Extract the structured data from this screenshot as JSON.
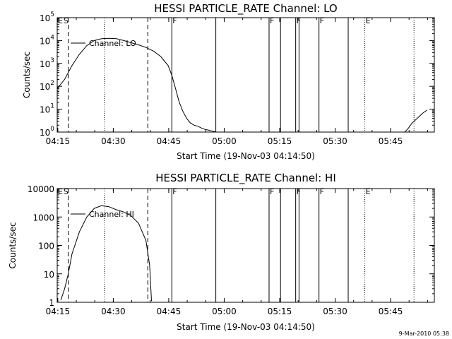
{
  "chart_data": [
    {
      "type": "line",
      "title": "HESSI PARTICLE_RATE Channel: LO",
      "xlabel": "Start Time (19-Nov-03 04:14:50)",
      "ylabel": "Counts/sec",
      "y_scale": "log",
      "ylim": [
        1,
        100000
      ],
      "xlim_minutes": [
        0,
        102
      ],
      "x_tick_labels": [
        "04:15",
        "04:30",
        "04:45",
        "05:00",
        "05:15",
        "05:30",
        "05:45"
      ],
      "y_tick_labels": [
        {
          "base": "10",
          "exp": "0"
        },
        {
          "base": "10",
          "exp": "1"
        },
        {
          "base": "10",
          "exp": "2"
        },
        {
          "base": "10",
          "exp": "3"
        },
        {
          "base": "10",
          "exp": "4"
        },
        {
          "base": "10",
          "exp": "5"
        }
      ],
      "grid": false,
      "legend": {
        "placement": "top-left",
        "entries": [
          "Channel: LO"
        ]
      },
      "series": [
        {
          "name": "Channel: LO",
          "segments": [
            {
              "x": [
                0,
                2,
                4,
                6,
                8,
                10,
                12,
                14,
                16,
                18,
                20,
                22,
                24,
                26,
                28,
                30,
                31,
                32,
                33,
                34,
                35,
                36,
                37,
                38,
                39,
                40,
                41,
                42,
                43
              ],
              "y": [
                80,
                200,
                800,
                2500,
                6000,
                10000,
                12000,
                12500,
                12000,
                10000,
                8000,
                6500,
                5000,
                3500,
                2000,
                800,
                300,
                80,
                20,
                8,
                4,
                2.5,
                2,
                1.8,
                1.5,
                1.3,
                1.2,
                1.1,
                1.0
              ]
            },
            {
              "x": [
                94,
                95,
                96,
                97,
                98,
                99,
                100
              ],
              "y": [
                1.0,
                1.5,
                2.5,
                3.5,
                5,
                7,
                9
              ]
            }
          ]
        }
      ],
      "markers": [
        {
          "label": "E",
          "x": 0,
          "style": "none"
        },
        {
          "label": "S",
          "x": 1.5,
          "style": "none"
        },
        {
          "label": "",
          "x": 3,
          "style": "dashed"
        },
        {
          "label": "",
          "x": 12.8,
          "style": "dotted"
        },
        {
          "label": "",
          "x": 24.5,
          "style": "dashed"
        },
        {
          "label": "F",
          "x": 31,
          "style": "solid"
        },
        {
          "label": "",
          "x": 42.9,
          "style": "solid"
        },
        {
          "label": "F",
          "x": 57.3,
          "style": "solid"
        },
        {
          "label": "",
          "x": 60.4,
          "style": "solid"
        },
        {
          "label": "F",
          "x": 64.5,
          "style": "solid"
        },
        {
          "label": "",
          "x": 65.4,
          "style": "solid"
        },
        {
          "label": "F",
          "x": 70.8,
          "style": "solid"
        },
        {
          "label": "",
          "x": 78.7,
          "style": "solid"
        },
        {
          "label": "E",
          "x": 83.2,
          "style": "dotted"
        },
        {
          "label": "",
          "x": 96.5,
          "style": "dotted"
        }
      ]
    },
    {
      "type": "line",
      "title": "HESSI PARTICLE_RATE Channel: HI",
      "xlabel": "Start Time (19-Nov-03 04:14:50)",
      "ylabel": "Counts/sec",
      "y_scale": "log",
      "ylim": [
        1,
        10000
      ],
      "xlim_minutes": [
        0,
        102
      ],
      "x_tick_labels": [
        "04:15",
        "04:30",
        "04:45",
        "05:00",
        "05:15",
        "05:30",
        "05:45"
      ],
      "y_tick_labels": [
        {
          "base": "1",
          "exp": ""
        },
        {
          "base": "10",
          "exp": ""
        },
        {
          "base": "100",
          "exp": ""
        },
        {
          "base": "1000",
          "exp": ""
        },
        {
          "base": "10000",
          "exp": ""
        }
      ],
      "grid": false,
      "legend": {
        "placement": "top-left",
        "entries": [
          "Channel: HI"
        ]
      },
      "series": [
        {
          "name": "Channel: HI",
          "segments": [
            {
              "x": [
                1,
                2,
                3,
                4,
                6,
                8,
                10,
                12,
                14,
                16,
                18,
                20,
                22,
                24,
                25,
                25.5
              ],
              "y": [
                1.2,
                3,
                10,
                50,
                300,
                1000,
                2000,
                2500,
                2300,
                1800,
                1500,
                1100,
                600,
                150,
                20,
                1.1
              ]
            }
          ]
        }
      ],
      "markers": [
        {
          "label": "E",
          "x": 0,
          "style": "none"
        },
        {
          "label": "S",
          "x": 1.5,
          "style": "none"
        },
        {
          "label": "",
          "x": 3,
          "style": "dashed"
        },
        {
          "label": "",
          "x": 12.8,
          "style": "dotted"
        },
        {
          "label": "",
          "x": 24.5,
          "style": "dashed"
        },
        {
          "label": "F",
          "x": 31,
          "style": "solid"
        },
        {
          "label": "",
          "x": 42.9,
          "style": "solid"
        },
        {
          "label": "F",
          "x": 57.3,
          "style": "solid"
        },
        {
          "label": "",
          "x": 60.4,
          "style": "solid"
        },
        {
          "label": "F",
          "x": 64.5,
          "style": "solid"
        },
        {
          "label": "",
          "x": 65.4,
          "style": "solid"
        },
        {
          "label": "F",
          "x": 70.8,
          "style": "solid"
        },
        {
          "label": "",
          "x": 78.7,
          "style": "solid"
        },
        {
          "label": "E",
          "x": 83.2,
          "style": "dotted"
        },
        {
          "label": "",
          "x": 96.5,
          "style": "dotted"
        }
      ]
    }
  ],
  "footer": {
    "date_stamp": "9-Mar-2010 05:38"
  }
}
